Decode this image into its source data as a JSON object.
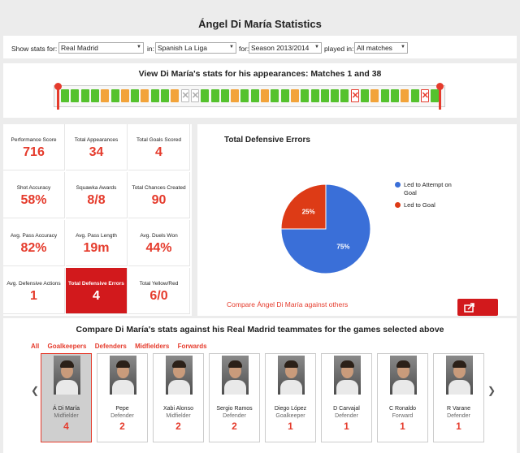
{
  "page": {
    "title": "Ángel Di María Statistics"
  },
  "filters": {
    "show_stats_for_label": "Show stats for:",
    "team": "Real Madrid",
    "in_label": "in:",
    "competition": "Spanish La Liga",
    "for_label": "for:",
    "season": "Season 2013/2014",
    "played_in_label": "played in:",
    "matches": "All matches"
  },
  "appearances": {
    "heading": "View Di María's stats for his appearances: Matches 1 and 38",
    "segments": [
      "green",
      "green",
      "green",
      "green",
      "orange",
      "green",
      "orange",
      "green",
      "orange",
      "green",
      "green",
      "orange",
      "x",
      "x",
      "green",
      "green",
      "green",
      "orange",
      "green",
      "green",
      "orange",
      "green",
      "green",
      "orange",
      "green",
      "green",
      "green",
      "green",
      "green",
      "x-red",
      "green",
      "orange",
      "green",
      "green",
      "orange",
      "green",
      "x-red",
      "green"
    ]
  },
  "stats": [
    {
      "label": "Performance Score",
      "value": "716"
    },
    {
      "label": "Total Appearances",
      "value": "34"
    },
    {
      "label": "Total Goals Scored",
      "value": "4"
    },
    {
      "label": "Shot Accuracy",
      "value": "58%"
    },
    {
      "label": "Squawka Awards",
      "value": "8/8"
    },
    {
      "label": "Total Chances Created",
      "value": "90"
    },
    {
      "label": "Avg. Pass Accuracy",
      "value": "82%"
    },
    {
      "label": "Avg. Pass Length",
      "value": "19m"
    },
    {
      "label": "Avg. Duels Won",
      "value": "44%"
    },
    {
      "label": "Avg. Defensive Actions",
      "value": "1"
    },
    {
      "label": "Total Defensive Errors",
      "value": "4"
    },
    {
      "label": "Total Yellow/Red",
      "value": "6/0"
    }
  ],
  "chart_data": {
    "type": "pie",
    "title": "Total Defensive Errors",
    "categories": [
      "Led to Attempt on Goal",
      "Led to Goal"
    ],
    "values": [
      75,
      25
    ],
    "labels": [
      "75%",
      "25%"
    ],
    "colors": [
      "#3a6fd8",
      "#dd3b16"
    ],
    "legend_position": "right"
  },
  "chart": {
    "compare_link": "Compare Ángel Di María against others"
  },
  "teammates": {
    "heading": "Compare Di María's stats against his Real Madrid teammates for the games selected above",
    "tabs": [
      "All",
      "Goalkeepers",
      "Defenders",
      "Midfielders",
      "Forwards"
    ],
    "players": [
      {
        "name": "Á Di María",
        "position": "Midfielder",
        "value": "4"
      },
      {
        "name": "Pepe",
        "position": "Defender",
        "value": "2"
      },
      {
        "name": "Xabi Alonso",
        "position": "Midfielder",
        "value": "2"
      },
      {
        "name": "Sergio Ramos",
        "position": "Defender",
        "value": "2"
      },
      {
        "name": "Diego López",
        "position": "Goalkeeper",
        "value": "1"
      },
      {
        "name": "D Carvajal",
        "position": "Defender",
        "value": "1"
      },
      {
        "name": "C Ronaldo",
        "position": "Forward",
        "value": "1"
      },
      {
        "name": "R Varane",
        "position": "Defender",
        "value": "1"
      }
    ]
  }
}
